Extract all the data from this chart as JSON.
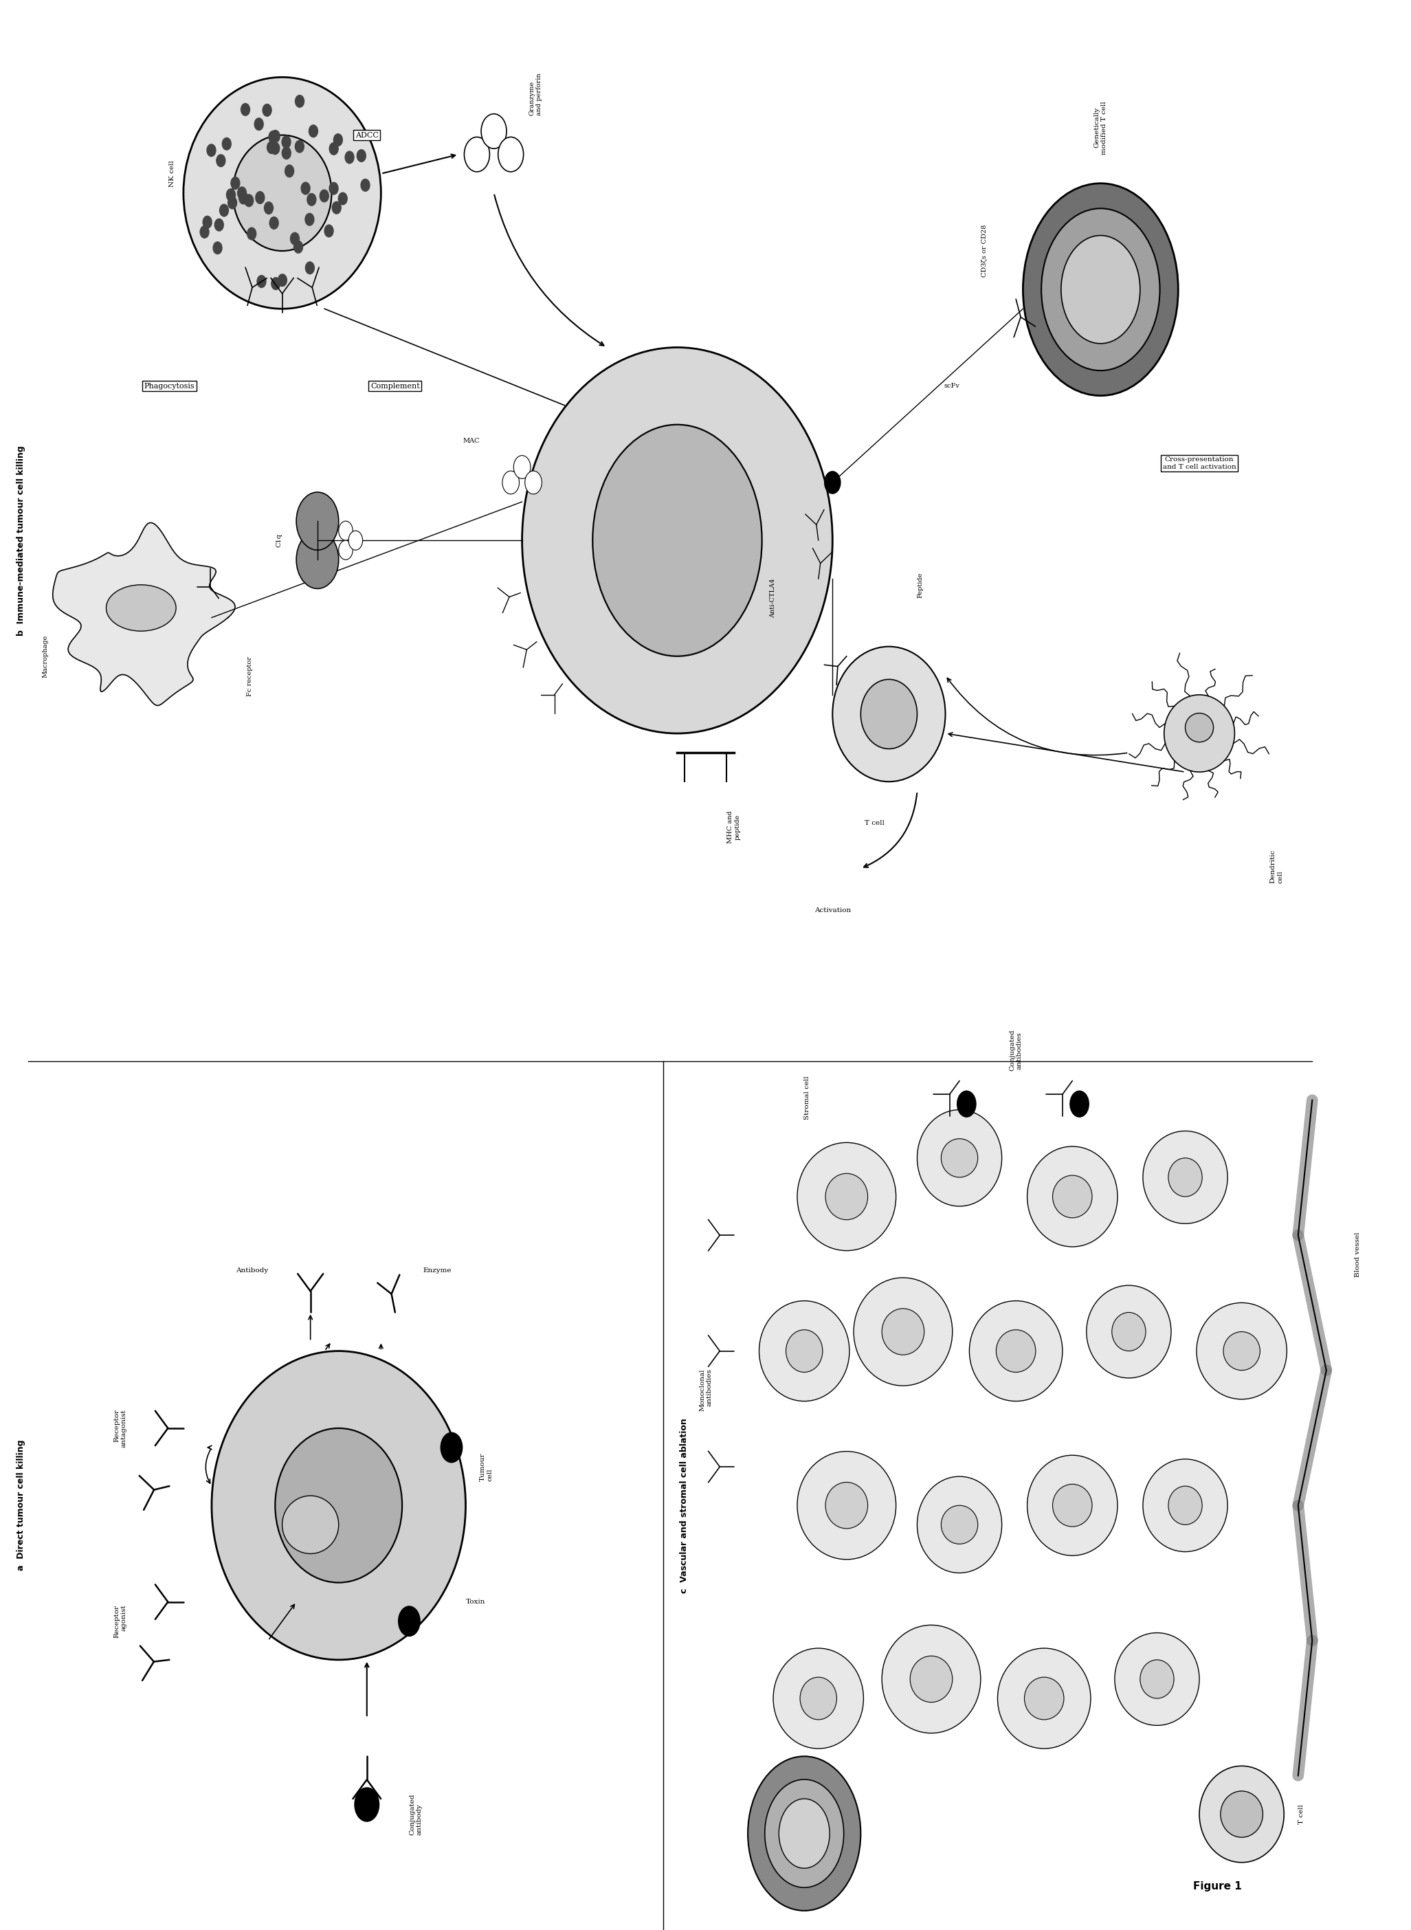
{
  "title": "Figure 1",
  "bg_color": "#ffffff",
  "panel_b_title": "b  Immune-mediated tumour cell killing",
  "panel_a_title": "a  Direct tumour cell killing",
  "panel_c_title": "c  Vascular and stromal cell ablation",
  "fig1_label": "Figure 1",
  "colors": {
    "black": "#000000",
    "white": "#ffffff",
    "light_gray": "#e8e8e8",
    "medium_gray": "#c0c0c0",
    "dark_gray": "#808080",
    "darker_gray": "#606060",
    "cell_light": "#e0e0e0",
    "cell_medium": "#c8c8c8",
    "cell_dark": "#a0a0a0",
    "nk_dots": "#404040"
  },
  "labels": {
    "nk_cell": "NK cell",
    "adcc": "ADCC",
    "granzyme": "Granzyme\nand perforin",
    "phagocytosis": "Phagocytosis",
    "complement": "Complement",
    "macrophage": "Macrophage",
    "fc_receptor": "Fc receptor",
    "c1q": "C1q",
    "mac": "MAC",
    "mhc_peptide": "MHC and\npeptide",
    "tcell": "T cell",
    "anti_ctla4": "Anti-CTLA4",
    "peptide": "Peptide",
    "activation": "Activation",
    "dendritic": "Dendritic\ncell",
    "cd3z": "CD3ζs or CD28",
    "scfv": "scFv",
    "genetically_modified": "Genetically\nmodified T cell",
    "cross_presentation": "Cross-presentation\nand T cell activation",
    "antibody": "Antibody",
    "enzyme": "Enzyme",
    "tumour_cell_a": "Tumour\ncell",
    "receptor_antagonist": "Receptor\nantagonist",
    "receptor_agonist": "Receptor\nagonist",
    "toxin": "Toxin",
    "conjugated_antibody": "Conjugated\nantibody",
    "stromal_cell": "Stromal cell",
    "blood_vessel": "Blood vessel",
    "conjugated_antibodies": "Conjugated\nantibodies",
    "monoclonal_antibodies": "Monoclonal\nantibodies",
    "tumour_cell_c": "tumour\ncell",
    "tcell_c": "T cell"
  }
}
